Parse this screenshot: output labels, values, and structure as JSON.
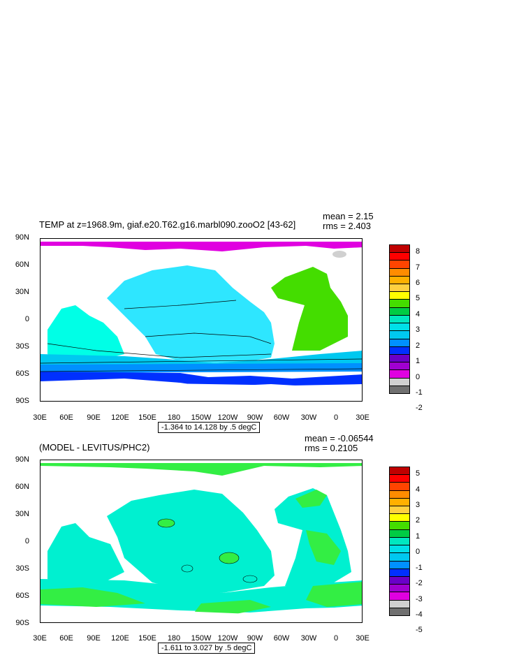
{
  "top_panel": {
    "title": "TEMP at z=1968.9m, giaf.e20.T62.g16.marbl090.zooO2 [43-62]",
    "mean": "mean = 2.15",
    "rms": "rms = 2.403",
    "range": "-1.364 to 14.128 by .5 degC",
    "colorbar_labels": [
      "8",
      "7",
      "6",
      "5",
      "4",
      "3",
      "2",
      "1",
      "0",
      "-1",
      "-2"
    ],
    "colorbar_colors": [
      "#c00000",
      "#ff0000",
      "#ff4400",
      "#ff8c00",
      "#ffb000",
      "#ffd040",
      "#ffff00",
      "#44dd00",
      "#00cc44",
      "#00e8c0",
      "#00e0e8",
      "#00c8f0",
      "#0090ff",
      "#0030ff",
      "#6a00c8",
      "#a000d0",
      "#e000e0",
      "#d0d0d0",
      "#707070"
    ],
    "land_note": ""
  },
  "bottom_panel": {
    "title": "(MODEL - LEVITUS/PHC2)",
    "mean": "mean = -0.06544",
    "rms": "rms = 0.2105",
    "range": "-1.611 to 3.027 by .5 degC",
    "colorbar_labels": [
      "5",
      "4",
      "3",
      "2",
      "1",
      "0",
      "-1",
      "-2",
      "-3",
      "-4",
      "-5"
    ],
    "colorbar_colors": [
      "#c00000",
      "#ff0000",
      "#ff4400",
      "#ff8c00",
      "#ffb000",
      "#ffd040",
      "#ffff00",
      "#44dd00",
      "#00cc44",
      "#00e8c0",
      "#00e0e8",
      "#00c8f0",
      "#0090ff",
      "#0030ff",
      "#6a00c8",
      "#a000d0",
      "#e000e0",
      "#d0d0d0",
      "#707070"
    ]
  },
  "axes": {
    "lat_labels": [
      "90N",
      "60N",
      "30N",
      "0",
      "30S",
      "60S",
      "90S"
    ],
    "lon_labels": [
      "30E",
      "60E",
      "90E",
      "120E",
      "150E",
      "180",
      "150W",
      "120W",
      "90W",
      "60W",
      "30W",
      "0",
      "30E"
    ]
  },
  "colors": {
    "top_ocean_main": "#2ee6ff",
    "top_ocean_light": "#00ffe6",
    "top_southern": "#0090ff",
    "top_south_deep": "#0030ff",
    "top_atlantic": "#44dd00",
    "top_arctic": "#e000e0",
    "bottom_ocean": "#00f0d0",
    "bottom_green": "#33ee44",
    "land": "#ffffff"
  }
}
